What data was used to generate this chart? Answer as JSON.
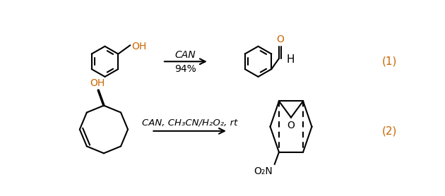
{
  "background": "#ffffff",
  "black": "#000000",
  "orange": "#cc6600",
  "fig_w": 6.3,
  "fig_h": 2.78,
  "lw": 1.5,
  "r1_reagent": "CAN",
  "r1_yield": "94%",
  "r1_eq": "(1)",
  "r2_reagent": "CAN, CH₃CN/H₂O₂, rt",
  "r2_eq": "(2)",
  "O2N": "O₂N"
}
